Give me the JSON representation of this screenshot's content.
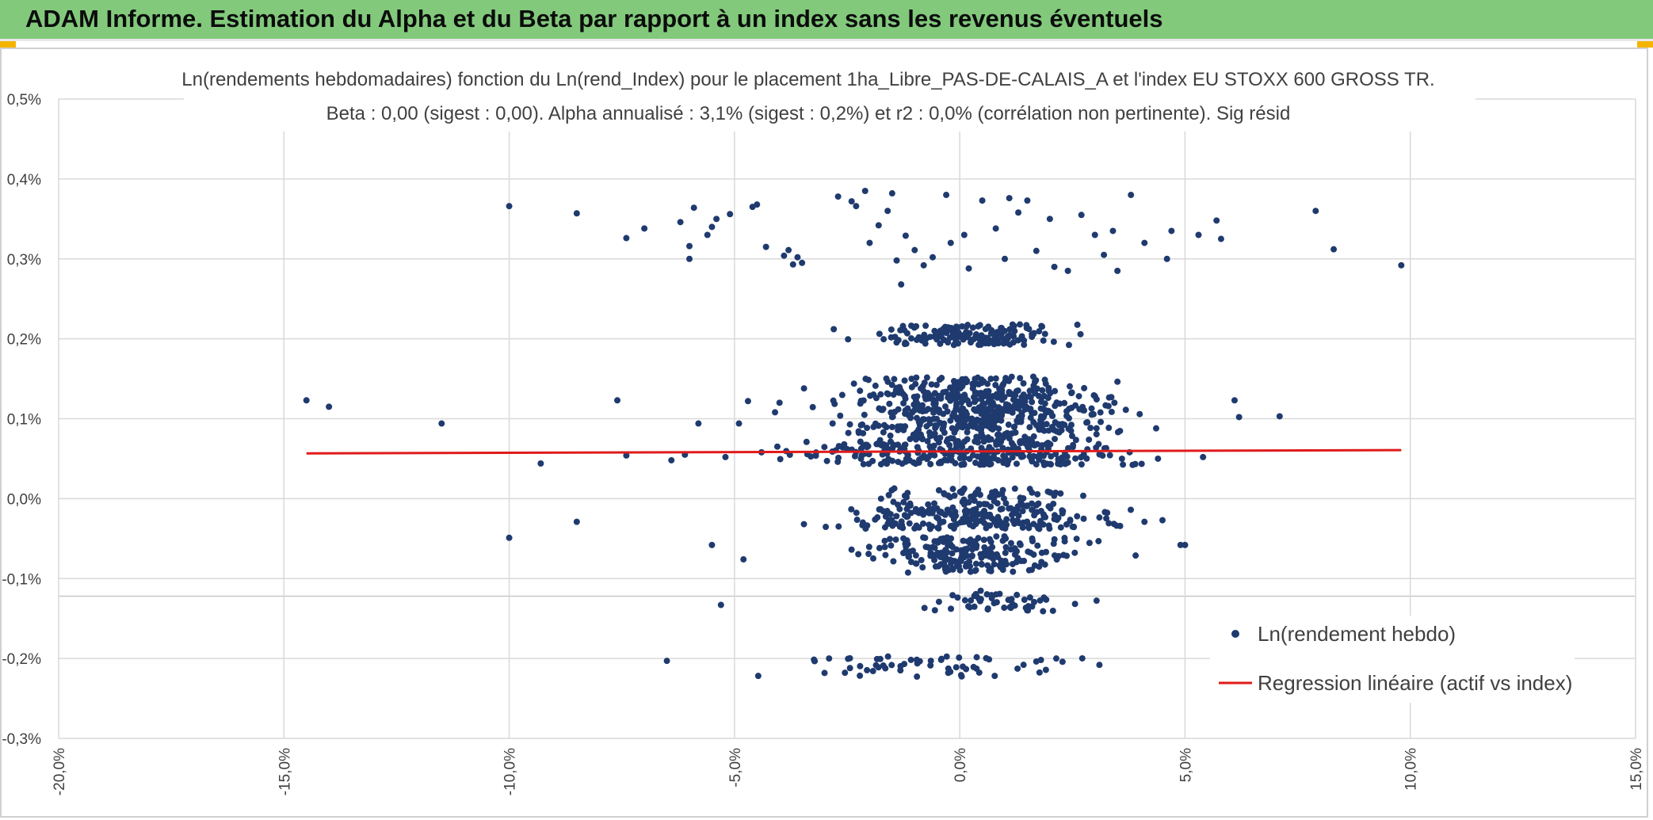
{
  "header": {
    "title": "ADAM Informe. Estimation du Alpha et du Beta par rapport à un index sans les revenus éventuels"
  },
  "colors": {
    "header_bg": "#82c97c",
    "point": "#1f3a6e",
    "regression": "#e01b1b",
    "grid": "#d9d9d9",
    "text": "#404040"
  },
  "chart_data": {
    "type": "scatter",
    "title": "Ln(rendements hebdomadaires) fonction du Ln(rend_Index) pour le placement 1ha_Libre_PAS-DE-CALAIS_A et l'index EU STOXX 600 GROSS TR.",
    "subtitle": "Beta : 0,00 (sigest : 0,00). Alpha annualisé : 3,1% (sigest : 0,2%) et r2 : 0,0% (corrélation non pertinente). Sig résid",
    "xlabel": "",
    "ylabel": "",
    "xlim": [
      -20,
      15
    ],
    "ylim": [
      -0.3,
      0.5
    ],
    "x_ticks": [
      "-20,0%",
      "-15,0%",
      "-10,0%",
      "-5,0%",
      "0,0%",
      "5,0%",
      "10,0%",
      "15,0%"
    ],
    "y_ticks": [
      "0,5%",
      "0,4%",
      "0,3%",
      "0,2%",
      "0,1%",
      "0,0%",
      "-0,1%",
      "-0,2%",
      "-0,3%"
    ],
    "grid": true,
    "legend_position": "bottom-right",
    "legend": [
      "Ln(rendement hebdo)",
      "Regression linéaire (actif vs index)"
    ],
    "series": [
      {
        "name": "Ln(rendement hebdo)",
        "kind": "scatter",
        "points": [
          [
            -14.5,
            0.123
          ],
          [
            -14.0,
            0.115
          ],
          [
            -11.5,
            0.094
          ],
          [
            -10.0,
            0.366
          ],
          [
            -10.0,
            -0.049
          ],
          [
            -9.3,
            0.044
          ],
          [
            -8.5,
            0.357
          ],
          [
            -8.5,
            -0.029
          ],
          [
            -7.6,
            0.123
          ],
          [
            -7.4,
            0.326
          ],
          [
            -7.4,
            0.054
          ],
          [
            -7.0,
            0.338
          ],
          [
            -6.5,
            -0.203
          ],
          [
            -6.4,
            0.048
          ],
          [
            -6.2,
            0.346
          ],
          [
            -6.1,
            0.055
          ],
          [
            -6.0,
            0.3
          ],
          [
            -6.0,
            0.316
          ],
          [
            -5.9,
            0.364
          ],
          [
            -5.8,
            0.094
          ],
          [
            -5.6,
            0.33
          ],
          [
            -5.5,
            0.34
          ],
          [
            -5.5,
            -0.058
          ],
          [
            -5.4,
            0.35
          ],
          [
            -5.3,
            -0.133
          ],
          [
            -5.2,
            0.052
          ],
          [
            -5.1,
            0.356
          ],
          [
            -4.9,
            0.094
          ],
          [
            -4.8,
            -0.076
          ],
          [
            -4.7,
            0.122
          ],
          [
            -4.6,
            0.365
          ],
          [
            -4.5,
            0.368
          ],
          [
            -4.4,
            0.058
          ],
          [
            -4.3,
            0.315
          ],
          [
            -4.1,
            0.108
          ],
          [
            -4.0,
            0.12
          ],
          [
            -3.9,
            0.304
          ],
          [
            -3.8,
            0.311
          ],
          [
            -3.7,
            0.293
          ],
          [
            -3.6,
            0.302
          ],
          [
            -3.5,
            0.295
          ],
          [
            -3.4,
            0.071
          ],
          [
            -2.9,
            -0.2
          ],
          [
            -2.7,
            0.378
          ],
          [
            -2.4,
            0.372
          ],
          [
            -2.3,
            0.366
          ],
          [
            -2.1,
            0.385
          ],
          [
            -2.0,
            0.32
          ],
          [
            -1.8,
            0.342
          ],
          [
            -1.6,
            0.36
          ],
          [
            -1.5,
            0.382
          ],
          [
            -1.4,
            0.298
          ],
          [
            -1.3,
            0.268
          ],
          [
            -1.2,
            0.329
          ],
          [
            -1.0,
            0.311
          ],
          [
            -0.8,
            0.292
          ],
          [
            -0.6,
            0.302
          ],
          [
            -0.3,
            0.38
          ],
          [
            -0.2,
            0.32
          ],
          [
            0.1,
            0.33
          ],
          [
            0.2,
            0.288
          ],
          [
            0.5,
            0.373
          ],
          [
            0.8,
            0.338
          ],
          [
            1.0,
            0.3
          ],
          [
            1.1,
            0.376
          ],
          [
            1.3,
            0.358
          ],
          [
            1.5,
            0.373
          ],
          [
            1.7,
            0.31
          ],
          [
            2.0,
            0.35
          ],
          [
            2.1,
            0.29
          ],
          [
            2.4,
            0.285
          ],
          [
            2.7,
            0.355
          ],
          [
            3.0,
            0.33
          ],
          [
            3.2,
            0.305
          ],
          [
            3.4,
            0.335
          ],
          [
            3.5,
            0.285
          ],
          [
            3.8,
            0.38
          ],
          [
            4.1,
            0.32
          ],
          [
            4.6,
            0.3
          ],
          [
            4.7,
            0.335
          ],
          [
            5.3,
            0.33
          ],
          [
            5.7,
            0.348
          ],
          [
            5.8,
            0.325
          ],
          [
            7.9,
            0.36
          ],
          [
            8.3,
            0.312
          ],
          [
            9.8,
            0.292
          ],
          [
            3.1,
            -0.208
          ],
          [
            6.1,
            0.123
          ],
          [
            6.2,
            0.102
          ],
          [
            7.1,
            0.103
          ],
          [
            5.4,
            0.052
          ],
          [
            4.9,
            -0.058
          ],
          [
            5.0,
            -0.058
          ],
          [
            4.5,
            -0.027
          ],
          [
            4.1,
            -0.029
          ],
          [
            3.6,
            0.05
          ],
          [
            4.4,
            0.05
          ]
        ]
      },
      {
        "name": "Regression linéaire (actif vs index)",
        "kind": "line",
        "points": [
          [
            -14.5,
            0.0566
          ],
          [
            9.8,
            0.0607
          ]
        ]
      }
    ]
  }
}
